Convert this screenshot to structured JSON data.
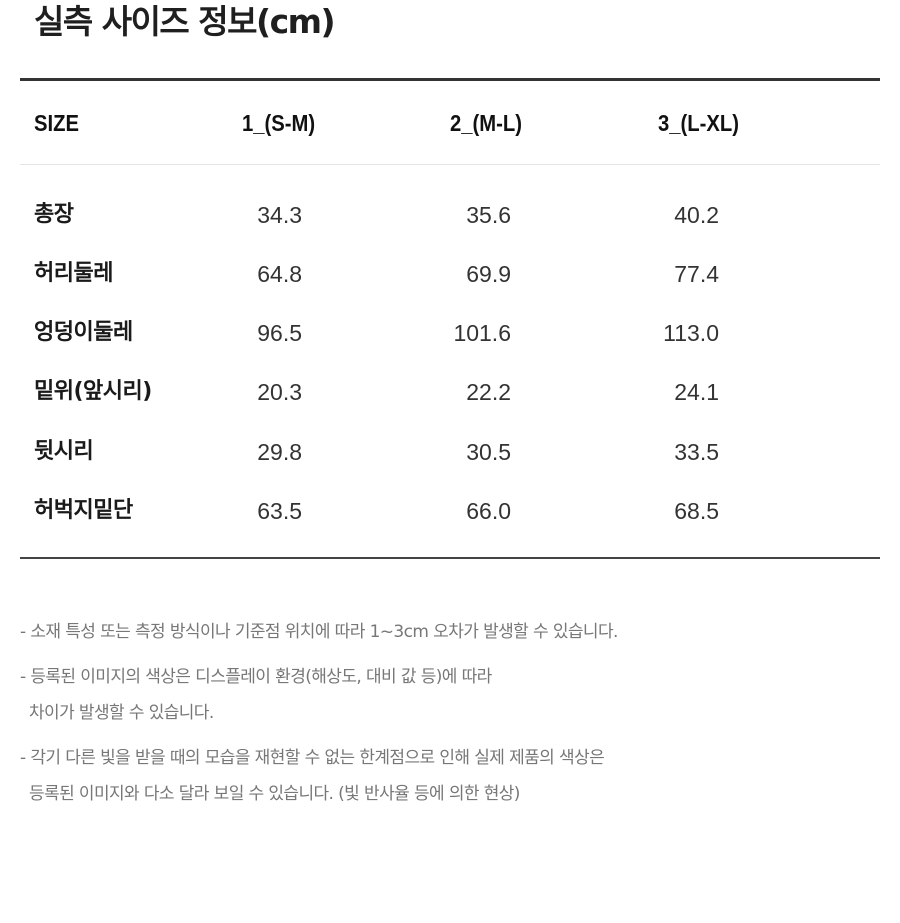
{
  "title": "실측 사이즈 정보(cm)",
  "table": {
    "headers": [
      "SIZE",
      "1_(S-M)",
      "2_(M-L)",
      "3_(L-XL)"
    ],
    "rows": [
      {
        "label": "총장",
        "values": [
          "34.3",
          "35.6",
          "40.2"
        ]
      },
      {
        "label": "허리둘레",
        "values": [
          "64.8",
          "69.9",
          "77.4"
        ]
      },
      {
        "label": "엉덩이둘레",
        "values": [
          "96.5",
          "101.6",
          "113.0"
        ]
      },
      {
        "label": "밑위(앞시리)",
        "values": [
          "20.3",
          "22.2",
          "24.1"
        ]
      },
      {
        "label": "뒷시리",
        "values": [
          "29.8",
          "30.5",
          "33.5"
        ]
      },
      {
        "label": "허벅지밑단",
        "values": [
          "63.5",
          "66.0",
          "68.5"
        ]
      }
    ]
  },
  "notes": [
    {
      "line1": "- 소재 특성 또는 측정 방식이나 기준점 위치에 따라 1~3cm 오차가 발생할 수 있습니다.",
      "line2": ""
    },
    {
      "line1": "- 등록된 이미지의 색상은 디스플레이 환경(해상도, 대비 값 등)에 따라",
      "line2": "차이가 발생할 수 있습니다."
    },
    {
      "line1": "- 각기 다른 빛을 받을 때의 모습을 재현할 수 없는 한계점으로 인해 실제 제품의 색상은",
      "line2": "등록된 이미지와 다소 달라 보일 수 있습니다. (빛 반사율 등에 의한 현상)"
    }
  ]
}
